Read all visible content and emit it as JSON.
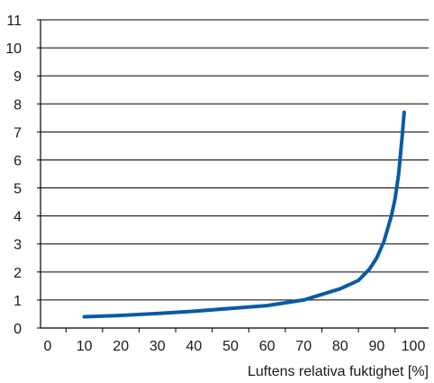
{
  "chart_data": {
    "type": "line",
    "title": "",
    "xlabel": "Luftens relativa fuktighet [%]",
    "ylabel": "",
    "xlim": [
      0,
      100
    ],
    "ylim": [
      0,
      11
    ],
    "x_ticks": [
      "0",
      "10",
      "20",
      "30",
      "40",
      "50",
      "60",
      "70",
      "80",
      "90",
      "100"
    ],
    "y_ticks": [
      "0",
      "1",
      "2",
      "3",
      "4",
      "5",
      "6",
      "7",
      "8",
      "9",
      "10",
      "11"
    ],
    "grid": "horizontal",
    "legend": "none",
    "line_color": "#0a5ba6",
    "series": [
      {
        "x": [
          10,
          20,
          30,
          40,
          50,
          60,
          70,
          80,
          85,
          88,
          90,
          92,
          94,
          95,
          96,
          96.5,
          97,
          97.5
        ],
        "y": [
          0.4,
          0.45,
          0.52,
          0.6,
          0.7,
          0.8,
          1.0,
          1.4,
          1.7,
          2.1,
          2.5,
          3.1,
          4.0,
          4.6,
          5.5,
          6.2,
          6.9,
          7.7
        ]
      }
    ]
  }
}
